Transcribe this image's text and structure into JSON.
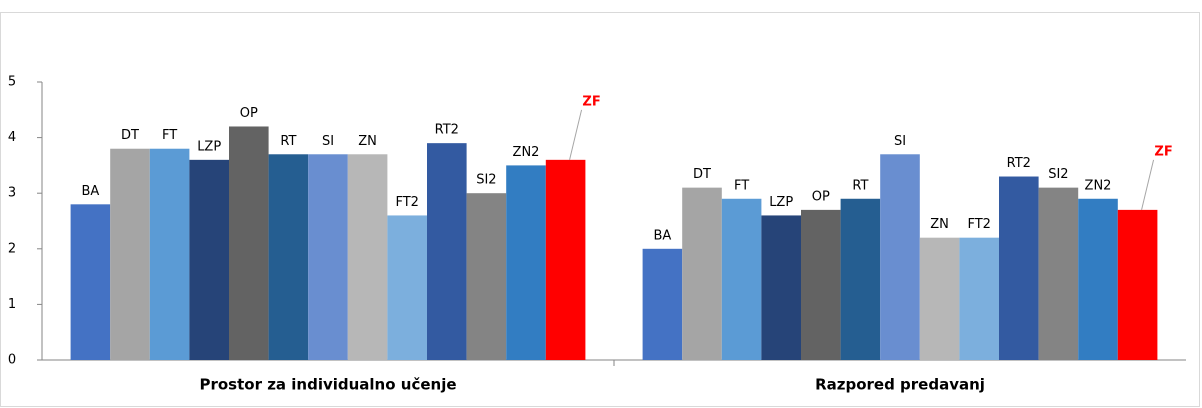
{
  "chart_data": {
    "type": "bar",
    "categories": [
      "Prostor za individualno učenje",
      "Razpored predavanj"
    ],
    "series": [
      {
        "name": "BA",
        "color": "#4472c4",
        "values": [
          2.8,
          2.0
        ]
      },
      {
        "name": "DT",
        "color": "#a5a5a5",
        "values": [
          3.8,
          3.1
        ]
      },
      {
        "name": "FT",
        "color": "#5b9bd5",
        "values": [
          3.8,
          2.9
        ]
      },
      {
        "name": "LZP",
        "color": "#264478",
        "values": [
          3.6,
          2.6
        ]
      },
      {
        "name": "OP",
        "color": "#636363",
        "values": [
          4.2,
          2.7
        ]
      },
      {
        "name": "RT",
        "color": "#255e91",
        "values": [
          3.7,
          2.9
        ]
      },
      {
        "name": "SI",
        "color": "#698ed0",
        "values": [
          3.7,
          3.7
        ]
      },
      {
        "name": "ZN",
        "color": "#b7b7b7",
        "values": [
          3.7,
          2.2
        ]
      },
      {
        "name": "FT2",
        "color": "#7cafdd",
        "values": [
          2.6,
          2.2
        ]
      },
      {
        "name": "RT2",
        "color": "#335aa1",
        "values": [
          3.9,
          3.3
        ]
      },
      {
        "name": "SI2",
        "color": "#848484",
        "values": [
          3.0,
          3.1
        ]
      },
      {
        "name": "ZN2",
        "color": "#327dc2",
        "values": [
          3.5,
          2.9
        ]
      },
      {
        "name": "ZF",
        "color": "#ff0000",
        "values": [
          3.6,
          2.7
        ],
        "callout": true
      }
    ],
    "ylim": [
      0,
      5
    ],
    "yticks": [
      0,
      1,
      2,
      3,
      4,
      5
    ],
    "grid": false
  }
}
